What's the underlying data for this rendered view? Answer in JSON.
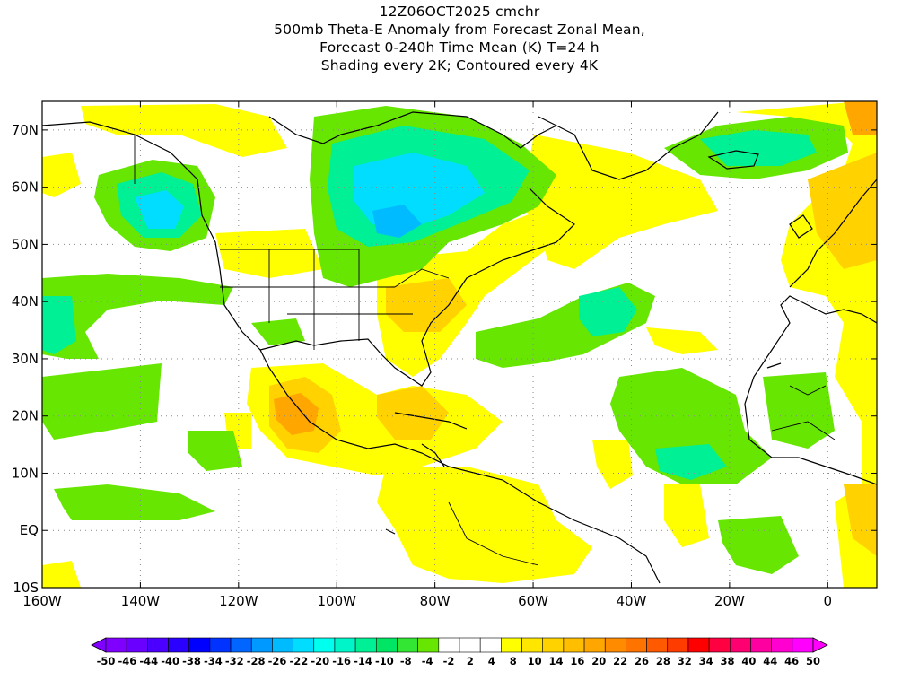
{
  "title": {
    "line1": "12Z06OCT2025 cmchr",
    "line2": "500mb Theta-E Anomaly from Forecast Zonal Mean,",
    "line3": "Forecast 0-240h Time Mean (K) T=24 h",
    "line4": "Shading every 2K; Contoured every 4K"
  },
  "axes": {
    "lat_labels": [
      "70N",
      "60N",
      "50N",
      "40N",
      "30N",
      "20N",
      "10N",
      "EQ",
      "10S"
    ],
    "lat_values": [
      70,
      60,
      50,
      40,
      30,
      20,
      10,
      0,
      -10
    ],
    "lon_labels": [
      "160W",
      "140W",
      "120W",
      "100W",
      "80W",
      "60W",
      "40W",
      "20W",
      "0"
    ],
    "lon_values": [
      -160,
      -140,
      -120,
      -100,
      -80,
      -60,
      -40,
      -20,
      0
    ],
    "lat_range": [
      -10,
      75
    ],
    "lon_range": [
      -160,
      10
    ]
  },
  "colorbar": {
    "labels": [
      "-50",
      "-46",
      "-44",
      "-40",
      "-38",
      "-34",
      "-32",
      "-28",
      "-26",
      "-22",
      "-20",
      "-16",
      "-14",
      "-10",
      "-8",
      "-4",
      "-2",
      "2",
      "4",
      "8",
      "10",
      "14",
      "16",
      "20",
      "22",
      "26",
      "28",
      "32",
      "34",
      "38",
      "40",
      "44",
      "46",
      "50"
    ],
    "colors": [
      "#7f00ff",
      "#6a00ff",
      "#4b00ff",
      "#2a00ff",
      "#0000ff",
      "#0033ff",
      "#0066ff",
      "#0099ff",
      "#00bbff",
      "#00ddff",
      "#00ffee",
      "#00f5c8",
      "#00f096",
      "#00e664",
      "#33e633",
      "#66e600",
      "#ffffff",
      "#ffffff",
      "#ffffff",
      "#ffff00",
      "#ffe600",
      "#ffd200",
      "#ffbe00",
      "#ffa600",
      "#ff8c00",
      "#ff7300",
      "#ff5a00",
      "#ff3c00",
      "#ff0000",
      "#ff0040",
      "#ff0070",
      "#ff00a0",
      "#ff00d0",
      "#ff00ff"
    ]
  },
  "colors": {
    "green": "#66e600",
    "mint": "#00f096",
    "cyan": "#00ddff",
    "blue": "#00bbff",
    "yellow": "#ffff00",
    "gold": "#ffd200",
    "orange": "#ffa600",
    "coast": "#000000"
  }
}
